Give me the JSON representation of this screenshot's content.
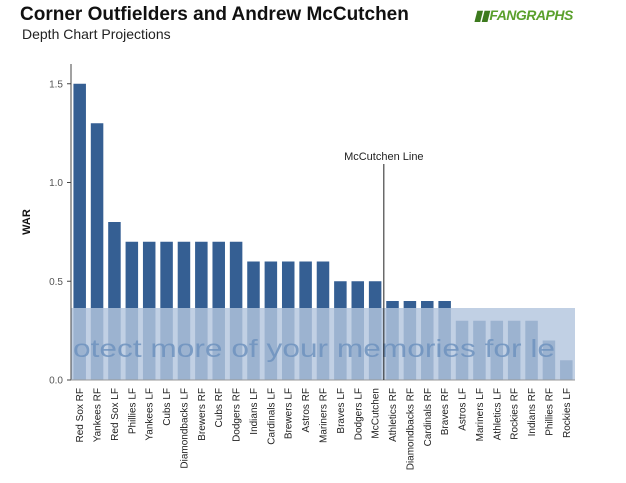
{
  "header": {
    "title": "Corner Outfielders and Andrew McCutchen",
    "subtitle": "Depth Chart Projections"
  },
  "logo": {
    "text": "FANGRAPHS",
    "icon": "fangraphs-logo-icon",
    "color": "#5aa02c"
  },
  "chart_data": {
    "type": "bar",
    "ylabel": "WAR",
    "xlabel": "",
    "ylim": [
      0,
      1.6
    ],
    "yticks": [
      "0.0",
      "0.5",
      "1.0",
      "1.5"
    ],
    "grid": false,
    "categories": [
      "Red Sox RF",
      "Yankees RF",
      "Red Sox LF",
      "Phillies LF",
      "Yankees LF",
      "Cubs LF",
      "Diamondbacks LF",
      "Brewers RF",
      "Cubs RF",
      "Dodgers RF",
      "Indians LF",
      "Cardinals LF",
      "Brewers LF",
      "Astros RF",
      "Mariners RF",
      "Braves LF",
      "Dodgers LF",
      "McCutchen",
      "Athletics RF",
      "Diamondbacks RF",
      "Cardinals RF",
      "Braves RF",
      "Astros LF",
      "Mariners LF",
      "Athletics LF",
      "Rockies RF",
      "Indians RF",
      "Phillies RF",
      "Rockies LF"
    ],
    "values": [
      1.5,
      1.3,
      0.8,
      0.7,
      0.7,
      0.7,
      0.7,
      0.7,
      0.7,
      0.7,
      0.6,
      0.6,
      0.6,
      0.6,
      0.6,
      0.5,
      0.5,
      0.5,
      0.4,
      0.4,
      0.4,
      0.4,
      0.3,
      0.3,
      0.3,
      0.3,
      0.3,
      0.2,
      0.1
    ],
    "bar_color": "#355f93",
    "annotation": {
      "label": "McCutchen Line",
      "at_category": "McCutchen"
    }
  },
  "overlay": {
    "text": "otect more of your memories for le",
    "color": "#b3c6de"
  }
}
